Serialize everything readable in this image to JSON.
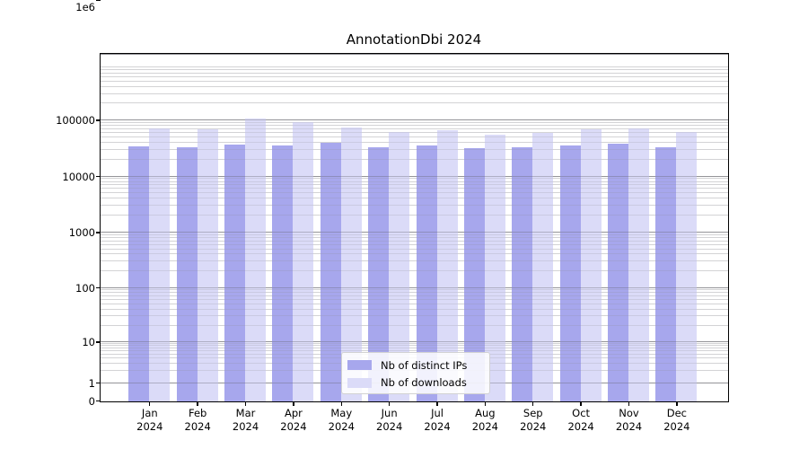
{
  "title": "AnnotationDbi 2024",
  "chart_data": {
    "type": "bar",
    "title": "AnnotationDbi 2024",
    "x_tick_labels": [
      [
        "Jan",
        "2024"
      ],
      [
        "Feb",
        "2024"
      ],
      [
        "Mar",
        "2024"
      ],
      [
        "Apr",
        "2024"
      ],
      [
        "May",
        "2024"
      ],
      [
        "Jun",
        "2024"
      ],
      [
        "Jul",
        "2024"
      ],
      [
        "Aug",
        "2024"
      ],
      [
        "Sep",
        "2024"
      ],
      [
        "Oct",
        "2024"
      ],
      [
        "Nov",
        "2024"
      ],
      [
        "Dec",
        "2024"
      ]
    ],
    "categories": [
      "Jan 2024",
      "Feb 2024",
      "Mar 2024",
      "Apr 2024",
      "May 2024",
      "Jun 2024",
      "Jul 2024",
      "Aug 2024",
      "Sep 2024",
      "Oct 2024",
      "Nov 2024",
      "Dec 2024"
    ],
    "series": [
      {
        "name": "Nb of distinct IPs",
        "color": "#a7a7ed",
        "values": [
          34500,
          34000,
          38000,
          36500,
          41000,
          34000,
          37000,
          33000,
          34000,
          37000,
          38500,
          34000
        ]
      },
      {
        "name": "Nb of downloads",
        "color": "#dbdbf8",
        "values": [
          74000,
          70000,
          108000,
          94000,
          75000,
          64000,
          68000,
          57000,
          61000,
          70000,
          72000,
          62000
        ]
      }
    ],
    "xlabel": "",
    "ylabel": "",
    "yscale": "symlog",
    "yticks": [
      0,
      1,
      10,
      100,
      1000,
      10000,
      100000,
      1000000
    ],
    "ytick_labels": [
      "0",
      "1",
      "10",
      "100",
      "1000",
      "10000",
      "100000",
      "1e6"
    ],
    "ylim": [
      0,
      1560000
    ],
    "grid": "horizontal major and minor (log minors 2-9 per decade)",
    "legend_position": "lower center inside plot"
  }
}
